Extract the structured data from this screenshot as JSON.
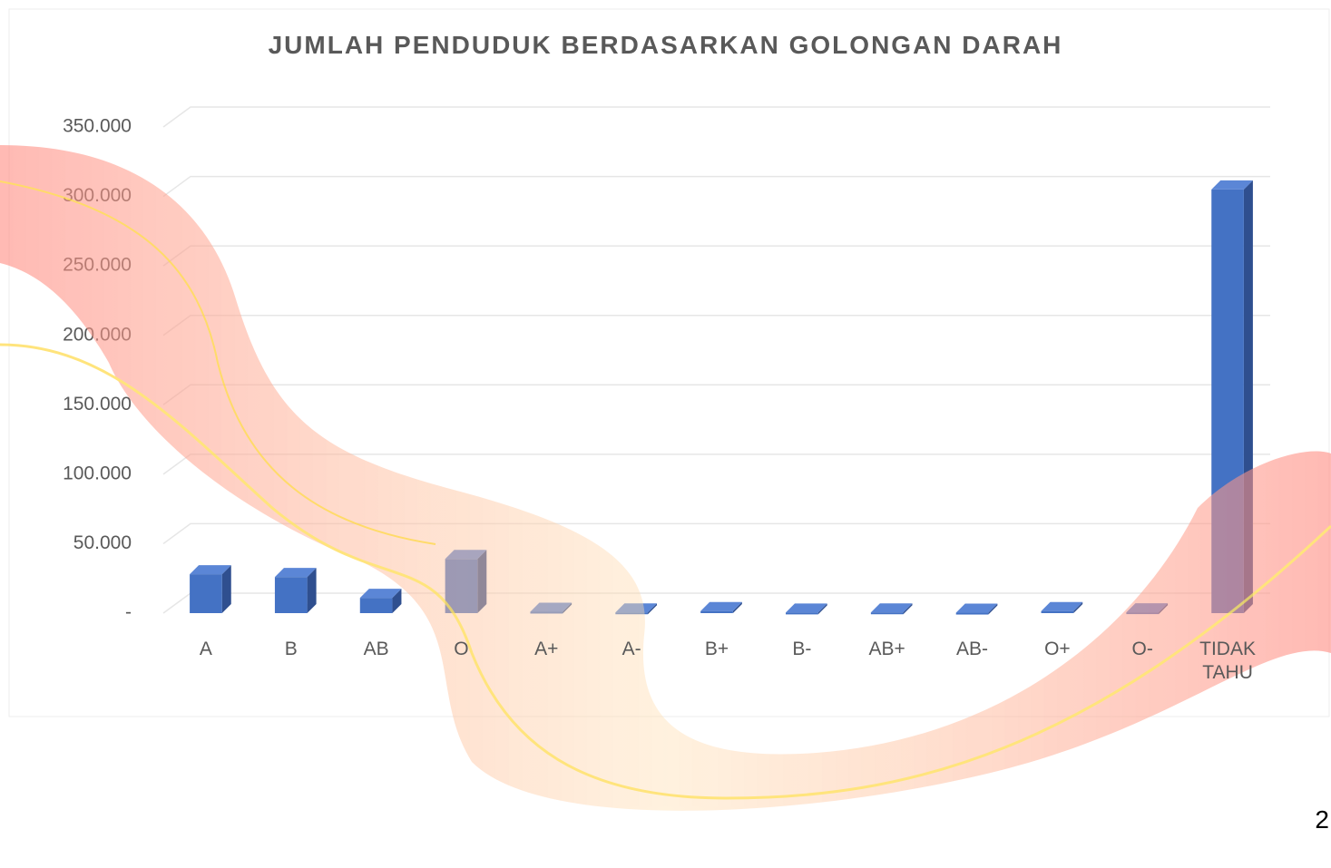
{
  "chart_data": {
    "type": "bar3d",
    "title": "JUMLAH PENDUDUK BERDASARKAN GOLONGAN DARAH",
    "categories": [
      "A",
      "B",
      "AB",
      "O",
      "A+",
      "A-",
      "B+",
      "B-",
      "AB+",
      "AB-",
      "O+",
      "O-",
      "TIDAK TAHU"
    ],
    "values": [
      28000,
      26000,
      11000,
      39000,
      1000,
      500,
      1500,
      400,
      500,
      300,
      1500,
      600,
      305000
    ],
    "color": "#4472c4",
    "ylim": [
      0,
      350000
    ],
    "yticks": [
      {
        "value": 0,
        "label": "-"
      },
      {
        "value": 50000,
        "label": "50.000"
      },
      {
        "value": 100000,
        "label": "100.000"
      },
      {
        "value": 150000,
        "label": "150.000"
      },
      {
        "value": 200000,
        "label": "200.000"
      },
      {
        "value": 250000,
        "label": "250.000"
      },
      {
        "value": 300000,
        "label": "300.000"
      },
      {
        "value": 350000,
        "label": "350.000"
      }
    ],
    "grid": true
  },
  "slide": {
    "page_number": "2"
  }
}
